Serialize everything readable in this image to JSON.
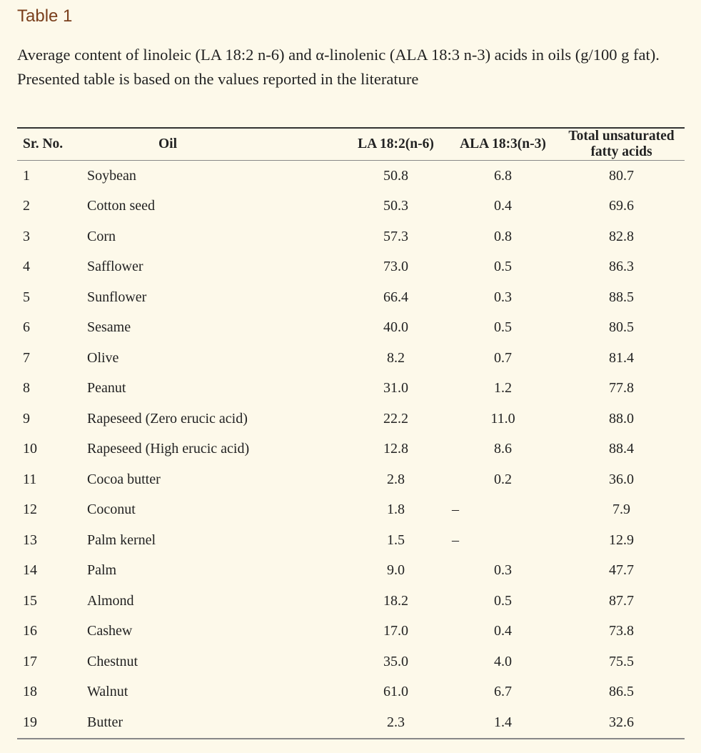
{
  "table_label": "Table 1",
  "caption": "Average content of linoleic (LA 18:2 n-6) and α-linolenic (ALA 18:3 n-3) acids in oils (g/100 g fat). Presented table is based on the values reported in the literature",
  "columns": [
    "Sr. No.",
    "Oil",
    "LA 18:2(n-6)",
    "ALA 18:3(n-3)",
    "Total unsaturated fatty acids"
  ],
  "rows": [
    {
      "sr": "1",
      "oil": "Soybean",
      "la": "50.8",
      "ala": "6.8",
      "total": "80.7"
    },
    {
      "sr": "2",
      "oil": "Cotton seed",
      "la": "50.3",
      "ala": "0.4",
      "total": "69.6"
    },
    {
      "sr": "3",
      "oil": "Corn",
      "la": "57.3",
      "ala": "0.8",
      "total": "82.8"
    },
    {
      "sr": "4",
      "oil": "Safflower",
      "la": "73.0",
      "ala": "0.5",
      "total": "86.3"
    },
    {
      "sr": "5",
      "oil": "Sunflower",
      "la": "66.4",
      "ala": "0.3",
      "total": "88.5"
    },
    {
      "sr": "6",
      "oil": "Sesame",
      "la": "40.0",
      "ala": "0.5",
      "total": "80.5"
    },
    {
      "sr": "7",
      "oil": "Olive",
      "la": "8.2",
      "ala": "0.7",
      "total": "81.4"
    },
    {
      "sr": "8",
      "oil": "Peanut",
      "la": "31.0",
      "ala": "1.2",
      "total": "77.8"
    },
    {
      "sr": "9",
      "oil": "Rapeseed (Zero erucic acid)",
      "la": "22.2",
      "ala": "11.0",
      "total": "88.0"
    },
    {
      "sr": "10",
      "oil": "Rapeseed (High erucic acid)",
      "la": "12.8",
      "ala": "8.6",
      "total": "88.4"
    },
    {
      "sr": "11",
      "oil": "Cocoa butter",
      "la": "2.8",
      "ala": "0.2",
      "total": "36.0"
    },
    {
      "sr": "12",
      "oil": "Coconut",
      "la": "1.8",
      "ala": "–",
      "total": "7.9"
    },
    {
      "sr": "13",
      "oil": "Palm kernel",
      "la": "1.5",
      "ala": "–",
      "total": "12.9"
    },
    {
      "sr": "14",
      "oil": "Palm",
      "la": "9.0",
      "ala": "0.3",
      "total": "47.7"
    },
    {
      "sr": "15",
      "oil": "Almond",
      "la": "18.2",
      "ala": "0.5",
      "total": "87.7"
    },
    {
      "sr": "16",
      "oil": "Cashew",
      "la": "17.0",
      "ala": "0.4",
      "total": "73.8"
    },
    {
      "sr": "17",
      "oil": "Chestnut",
      "la": "35.0",
      "ala": "4.0",
      "total": "75.5"
    },
    {
      "sr": "18",
      "oil": "Walnut",
      "la": "61.0",
      "ala": "6.7",
      "total": "86.5"
    },
    {
      "sr": "19",
      "oil": "Butter",
      "la": "2.3",
      "ala": "1.4",
      "total": "32.6"
    }
  ]
}
